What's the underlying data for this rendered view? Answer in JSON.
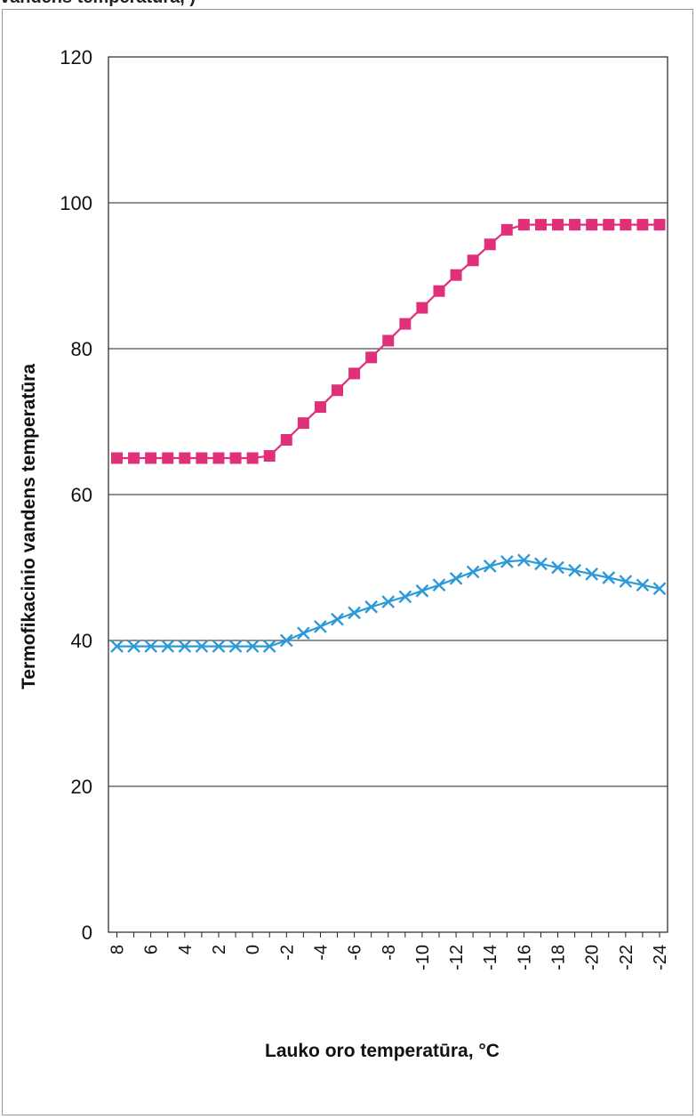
{
  "header": {
    "clipped_text": "vandens temperatūra, )"
  },
  "chart_data": {
    "type": "line",
    "title": "",
    "xlabel": "Lauko oro temperatūra, °C",
    "ylabel": "Termofikacinio vandens temperatūra",
    "ylim": [
      0,
      120
    ],
    "yticks": [
      "0",
      "20",
      "40",
      "60",
      "80",
      "100",
      "120"
    ],
    "grid": "horizontal",
    "legend": "none",
    "x": [
      8,
      7,
      6,
      5,
      4,
      3,
      2,
      1,
      0,
      -1,
      -2,
      -3,
      -4,
      -5,
      -6,
      -7,
      -8,
      -9,
      -10,
      -11,
      -12,
      -13,
      -14,
      -15,
      -16,
      -17,
      -18,
      -19,
      -20,
      -21,
      -22,
      -23,
      -24
    ],
    "xtick_labels": [
      "8",
      "6",
      "4",
      "2",
      "0",
      "-2",
      "-4",
      "-6",
      "-8",
      "-10",
      "-12",
      "-14",
      "-16",
      "-18",
      "-20",
      "-22",
      "-24"
    ],
    "series": [
      {
        "color": "#e0307a",
        "marker": "square",
        "values": [
          65,
          65,
          65,
          65,
          65,
          65,
          65,
          65,
          65,
          65.3,
          67.5,
          69.8,
          72,
          74.3,
          76.6,
          78.8,
          81.1,
          83.4,
          85.6,
          87.9,
          90.1,
          92.1,
          94.3,
          96.3,
          97,
          97,
          97,
          97,
          97,
          97,
          97,
          97,
          97
        ]
      },
      {
        "color": "#2c9ad8",
        "marker": "x",
        "values": [
          39.2,
          39.2,
          39.2,
          39.2,
          39.2,
          39.2,
          39.2,
          39.2,
          39.2,
          39.2,
          40,
          41,
          41.9,
          42.9,
          43.8,
          44.6,
          45.3,
          46,
          46.8,
          47.6,
          48.5,
          49.4,
          50.2,
          50.8,
          51,
          50.5,
          50,
          49.6,
          49.1,
          48.6,
          48.1,
          47.6,
          47.1
        ]
      }
    ]
  }
}
